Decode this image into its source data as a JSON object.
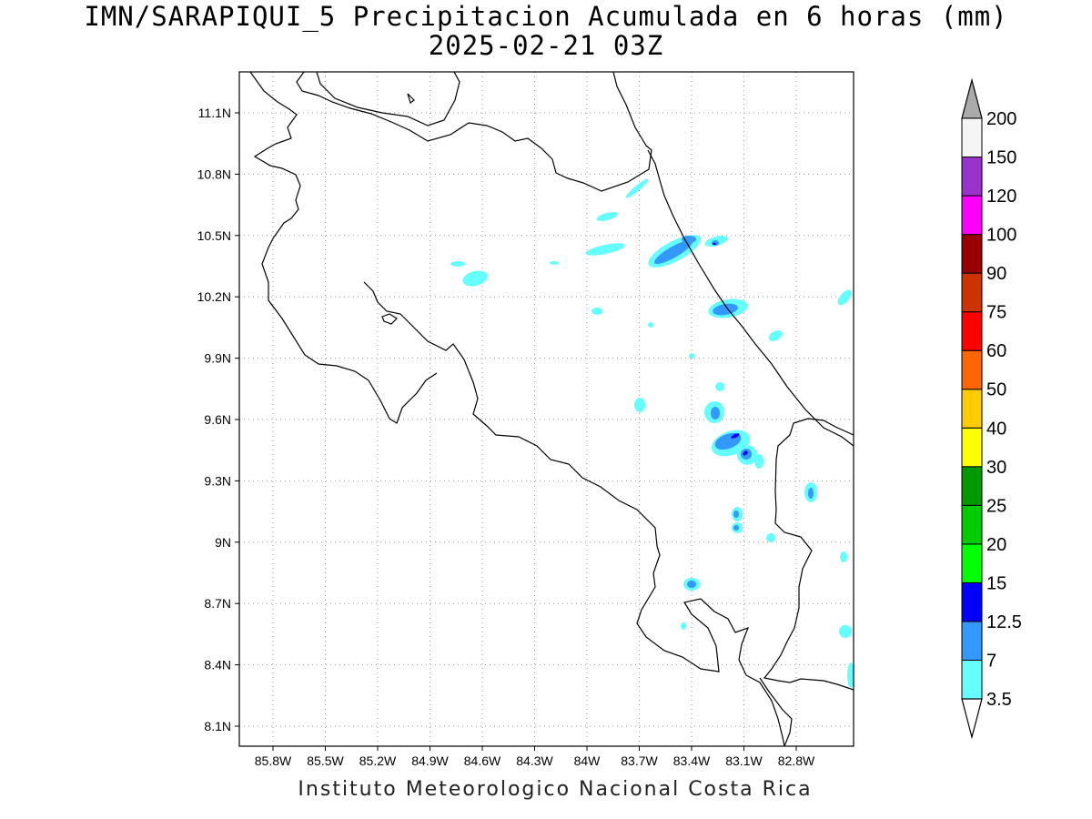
{
  "title_line1": "IMN/SARAPIQUI_5 Precipitacion Acumulada en 6 horas (mm)",
  "title_line2": "2025-02-21 03Z",
  "footer": "Instituto Meteorologico Nacional Costa Rica",
  "map": {
    "lon_range": [
      -86.0,
      -83.0
    ],
    "lat_range": [
      8.0,
      11.3
    ],
    "grid": "dotted",
    "x_ticks": [
      {
        "lon": -85.8,
        "label": "85.8W"
      },
      {
        "lon": -85.5,
        "label": "85.5W"
      },
      {
        "lon": -85.2,
        "label": "85.2W"
      },
      {
        "lon": -84.9,
        "label": "84.9W"
      },
      {
        "lon": -84.6,
        "label": "84.6W"
      },
      {
        "lon": -84.3,
        "label": "84.3W"
      },
      {
        "lon": -84.0,
        "label": "84W"
      },
      {
        "lon": -83.7,
        "label": "83.7W"
      },
      {
        "lon": -83.4,
        "label": "83.4W"
      },
      {
        "lon": -83.1,
        "label": "83.1W"
      },
      {
        "lon": -82.8,
        "label": "82.8W"
      }
    ],
    "y_ticks": [
      {
        "lat": 11.1,
        "label": "11.1N"
      },
      {
        "lat": 10.8,
        "label": "10.8N"
      },
      {
        "lat": 10.5,
        "label": "10.5N"
      },
      {
        "lat": 10.2,
        "label": "10.2N"
      },
      {
        "lat": 9.9,
        "label": "9.9N"
      },
      {
        "lat": 9.6,
        "label": "9.6N"
      },
      {
        "lat": 9.3,
        "label": "9.3N"
      },
      {
        "lat": 9.0,
        "label": "9N"
      },
      {
        "lat": 8.7,
        "label": "8.7N"
      },
      {
        "lat": 8.4,
        "label": "8.4N"
      },
      {
        "lat": 8.1,
        "label": "8.1N"
      }
    ]
  },
  "colorbar": {
    "levels": [
      "3.5",
      "7",
      "12.5",
      "15",
      "20",
      "25",
      "30",
      "40",
      "50",
      "60",
      "75",
      "90",
      "100",
      "120",
      "150",
      "200"
    ],
    "colors": [
      "#66ffff",
      "#3399ff",
      "#0000ff",
      "#00ff00",
      "#00cc00",
      "#009900",
      "#ffff00",
      "#ffcc00",
      "#ff6600",
      "#ff0000",
      "#cc3300",
      "#990000",
      "#ff00ff",
      "#9933cc",
      "#f5f5f5"
    ],
    "top_arrow_color": "#aaaaaa",
    "bottom_arrow_color": "#ffffff"
  }
}
